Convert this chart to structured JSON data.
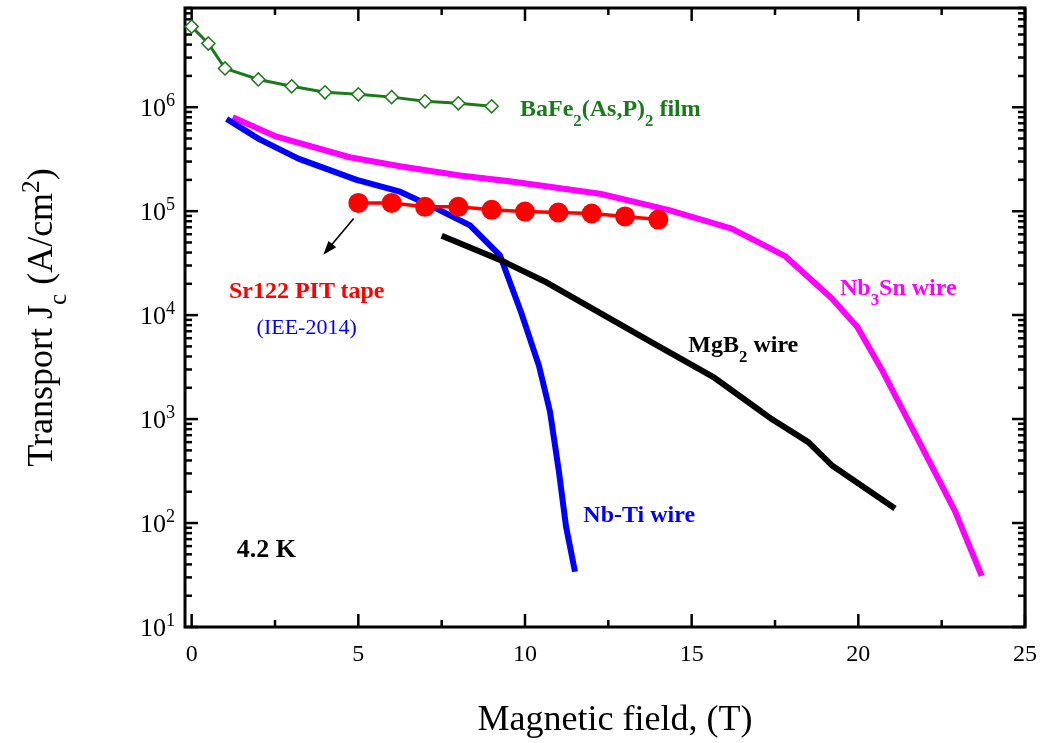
{
  "chart_data": {
    "type": "line",
    "xlabel": "Magnetic field,  (T)",
    "ylabel": "Transport J$_{c}$ (A/cm$^{2}$)",
    "log": "y",
    "grid": false,
    "line_style": "solid",
    "xlim": [
      -0.2,
      25
    ],
    "ylim": [
      10,
      9000000
    ],
    "xticks": [
      0,
      {
        "value": 2.5,
        "label": null
      },
      5,
      {
        "value": 7.5,
        "label": null
      },
      10,
      {
        "value": 12.5,
        "label": null
      },
      15,
      {
        "value": 17.5,
        "label": null
      },
      20,
      {
        "value": 22.5,
        "label": null
      },
      25
    ],
    "yticks": [
      {
        "value": 10,
        "label": "10$^{1}$"
      },
      {
        "value": 20,
        "label": null
      },
      {
        "value": 30,
        "label": null
      },
      {
        "value": 40,
        "label": null
      },
      {
        "value": 50,
        "label": null
      },
      {
        "value": 60,
        "label": null
      },
      {
        "value": 70,
        "label": null
      },
      {
        "value": 80,
        "label": null
      },
      {
        "value": 90,
        "label": null
      },
      {
        "value": 100,
        "label": "10$^{2}$"
      },
      {
        "value": 200,
        "label": null
      },
      {
        "value": 300,
        "label": null
      },
      {
        "value": 400,
        "label": null
      },
      {
        "value": 500,
        "label": null
      },
      {
        "value": 600,
        "label": null
      },
      {
        "value": 700,
        "label": null
      },
      {
        "value": 800,
        "label": null
      },
      {
        "value": 900,
        "label": null
      },
      {
        "value": 1000,
        "label": "10$^{3}$"
      },
      {
        "value": 2000,
        "label": null
      },
      {
        "value": 3000,
        "label": null
      },
      {
        "value": 4000,
        "label": null
      },
      {
        "value": 5000,
        "label": null
      },
      {
        "value": 6000,
        "label": null
      },
      {
        "value": 7000,
        "label": null
      },
      {
        "value": 8000,
        "label": null
      },
      {
        "value": 9000,
        "label": null
      },
      {
        "value": 10000,
        "label": "10$^{4}$"
      },
      {
        "value": 20000,
        "label": null
      },
      {
        "value": 30000,
        "label": null
      },
      {
        "value": 40000,
        "label": null
      },
      {
        "value": 50000,
        "label": null
      },
      {
        "value": 60000,
        "label": null
      },
      {
        "value": 70000,
        "label": null
      },
      {
        "value": 80000,
        "label": null
      },
      {
        "value": 90000,
        "label": null
      },
      {
        "value": 100000,
        "label": "10$^{5}$"
      },
      {
        "value": 200000,
        "label": null
      },
      {
        "value": 300000,
        "label": null
      },
      {
        "value": 400000,
        "label": null
      },
      {
        "value": 500000,
        "label": null
      },
      {
        "value": 600000,
        "label": null
      },
      {
        "value": 700000,
        "label": null
      },
      {
        "value": 800000,
        "label": null
      },
      {
        "value": 900000,
        "label": null
      },
      {
        "value": 1000000,
        "label": "10$^{6}$"
      },
      {
        "value": 2000000,
        "label": null
      },
      {
        "value": 3000000,
        "label": null
      },
      {
        "value": 4000000,
        "label": null
      },
      {
        "value": 5000000,
        "label": null
      },
      {
        "value": 6000000,
        "label": null
      },
      {
        "value": 7000000,
        "label": null
      },
      {
        "value": 8000000,
        "label": null
      },
      {
        "value": 9000000,
        "label": null
      }
    ],
    "series": [
      {
        "name": "BaFe$_{2}$(As,P)$_{2}$ film",
        "color": "#1a7a1a",
        "marker": "diamond",
        "x": [
          0,
          0.5,
          1,
          2,
          3,
          4,
          5,
          6,
          7,
          8,
          9
        ],
        "values": [
          5960000,
          4100000,
          2360000,
          1850000,
          1590000,
          1390000,
          1330000,
          1250000,
          1140000,
          1090000,
          1020000
        ]
      },
      {
        "name": "Nb$_{3}$Sn wire",
        "color": "#ff00ff",
        "marker": "none",
        "x": [
          1.23,
          2.55,
          4.74,
          6.25,
          8.05,
          9.76,
          12.25,
          14.3,
          16.2,
          17.8,
          19.2,
          19.97,
          20.7,
          21.7,
          22.9,
          23.7
        ],
        "values": [
          800000,
          520000,
          330000,
          270000,
          220000,
          190000,
          147000,
          103000,
          68000,
          37000,
          14500,
          7700,
          3000,
          725,
          130,
          31
        ]
      },
      {
        "name": "Nb-Ti wire",
        "color": "#0000ff",
        "marker": "none",
        "x": [
          1.05,
          2.04,
          3.2,
          4.95,
          6.25,
          7.24,
          8.35,
          9.25,
          9.88,
          10.42,
          10.75,
          11.02,
          11.23,
          11.5
        ],
        "values": [
          770000,
          490000,
          320000,
          200000,
          154000,
          110000,
          73000,
          37500,
          10700,
          3250,
          1180,
          308,
          93,
          34
        ]
      },
      {
        "name": "MgB$_{2}$ wire",
        "color": "#000000",
        "marker": "none",
        "x": [
          7.5,
          9.25,
          10.64,
          13.75,
          15.68,
          17.4,
          18.5,
          19.2,
          21.1
        ],
        "values": [
          58000,
          34000,
          20700,
          5600,
          2500,
          1000,
          600,
          360,
          138
        ]
      },
      {
        "color": "#ff0000",
        "marker": "circle",
        "x": [
          5,
          6,
          7,
          8,
          9,
          10,
          11,
          12,
          13,
          14
        ],
        "values": [
          120000,
          120000,
          110000,
          110000,
          103000,
          99000,
          97000,
          95000,
          89000,
          83000
        ]
      }
    ],
    "annotations": [
      "Sr122 PIT tape",
      "(IEE-2014)",
      "4.2 K"
    ]
  }
}
